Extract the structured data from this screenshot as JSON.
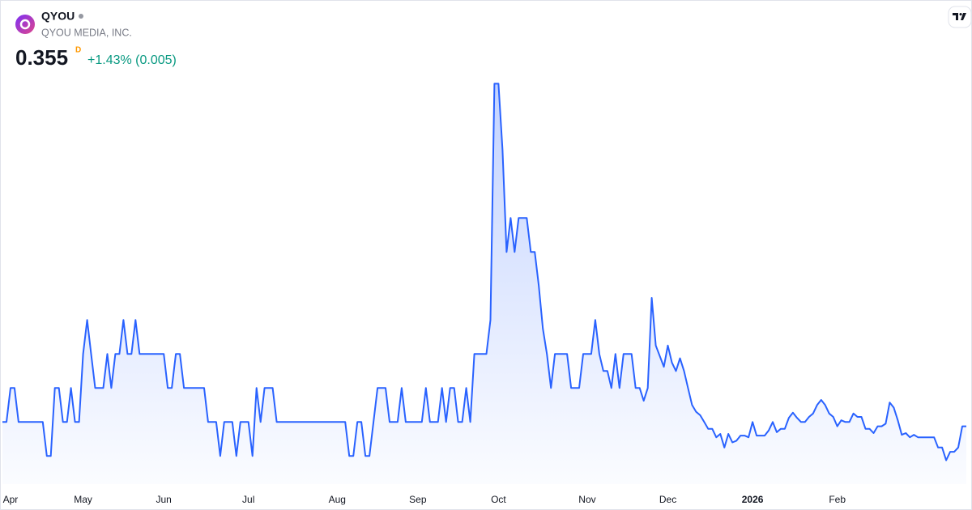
{
  "header": {
    "symbol": "QYOU",
    "company": "QYOU MEDIA, INC.",
    "price": "0.355",
    "interval": "D",
    "change": "+1.43% (0.005)"
  },
  "chart_data": {
    "type": "area",
    "color": "#2962ff",
    "x": [
      0,
      1,
      2,
      3,
      4,
      10,
      11,
      12,
      13,
      14,
      15,
      16,
      17,
      18,
      19,
      20,
      21,
      22,
      23,
      25,
      26,
      27,
      28,
      29,
      30,
      31,
      32,
      33,
      34,
      40,
      41,
      42,
      43,
      44,
      45,
      50,
      51,
      53,
      54,
      55,
      57,
      58,
      59,
      61,
      62,
      63,
      64,
      65,
      67,
      68,
      85,
      86,
      87,
      88,
      89,
      90,
      91,
      92,
      93,
      95,
      96,
      98,
      99,
      100,
      104,
      105,
      106,
      108,
      109,
      110,
      111,
      112,
      113,
      114,
      115,
      116,
      117,
      120,
      121,
      122,
      123,
      124,
      125,
      126,
      127,
      128,
      130,
      131,
      132,
      133,
      134,
      135,
      136,
      137,
      140,
      141,
      143,
      144,
      146,
      147,
      148,
      149,
      150,
      151,
      152,
      153,
      154,
      156,
      157,
      158,
      159,
      160,
      161,
      162,
      164,
      165,
      166,
      167,
      168,
      169,
      170,
      171,
      172,
      173,
      174,
      175,
      176,
      177,
      178,
      179,
      180,
      181,
      182,
      183,
      184,
      185,
      186,
      187,
      189,
      190,
      191,
      192,
      193,
      194,
      195,
      196,
      197,
      198,
      199,
      200,
      201,
      202,
      203,
      204,
      205,
      206,
      207,
      208,
      209,
      210,
      211,
      212,
      213,
      214,
      215,
      216,
      217,
      218,
      219,
      220,
      221,
      222,
      223,
      224,
      225,
      226,
      227,
      231,
      232,
      233,
      234,
      235,
      236,
      237,
      238,
      239
    ],
    "values": [
      0.36,
      0.36,
      0.4,
      0.4,
      0.36,
      0.36,
      0.32,
      0.32,
      0.4,
      0.4,
      0.36,
      0.36,
      0.4,
      0.36,
      0.36,
      0.44,
      0.48,
      0.44,
      0.4,
      0.4,
      0.44,
      0.4,
      0.44,
      0.44,
      0.48,
      0.44,
      0.44,
      0.48,
      0.44,
      0.44,
      0.4,
      0.4,
      0.44,
      0.44,
      0.4,
      0.4,
      0.36,
      0.36,
      0.32,
      0.36,
      0.36,
      0.32,
      0.36,
      0.36,
      0.32,
      0.4,
      0.36,
      0.4,
      0.4,
      0.36,
      0.36,
      0.32,
      0.32,
      0.36,
      0.36,
      0.32,
      0.32,
      0.36,
      0.4,
      0.4,
      0.36,
      0.36,
      0.4,
      0.36,
      0.36,
      0.4,
      0.36,
      0.36,
      0.4,
      0.36,
      0.4,
      0.4,
      0.36,
      0.36,
      0.4,
      0.36,
      0.44,
      0.44,
      0.48,
      0.758,
      0.758,
      0.68,
      0.56,
      0.6,
      0.56,
      0.6,
      0.6,
      0.56,
      0.56,
      0.52,
      0.47,
      0.44,
      0.4,
      0.44,
      0.44,
      0.4,
      0.4,
      0.44,
      0.44,
      0.48,
      0.44,
      0.42,
      0.42,
      0.4,
      0.44,
      0.4,
      0.44,
      0.44,
      0.4,
      0.4,
      0.385,
      0.4,
      0.506,
      0.45,
      0.425,
      0.45,
      0.43,
      0.42,
      0.435,
      0.42,
      0.4,
      0.38,
      0.372,
      0.368,
      0.36,
      0.352,
      0.352,
      0.342,
      0.346,
      0.33,
      0.346,
      0.336,
      0.338,
      0.344,
      0.344,
      0.342,
      0.36,
      0.344,
      0.344,
      0.35,
      0.36,
      0.348,
      0.352,
      0.352,
      0.365,
      0.371,
      0.365,
      0.36,
      0.36,
      0.366,
      0.37,
      0.38,
      0.386,
      0.38,
      0.37,
      0.366,
      0.355,
      0.362,
      0.36,
      0.36,
      0.37,
      0.366,
      0.366,
      0.352,
      0.352,
      0.347,
      0.355,
      0.355,
      0.358,
      0.383,
      0.377,
      0.362,
      0.345,
      0.347,
      0.342,
      0.345,
      0.342,
      0.342,
      0.33,
      0.33,
      0.315,
      0.325,
      0.325,
      0.33,
      0.355,
      0.355
    ],
    "xlim": [
      0,
      239
    ],
    "ylim": [
      0.287,
      0.766
    ],
    "xticks": [
      {
        "value": 2,
        "label": "Apr"
      },
      {
        "value": 20,
        "label": "May"
      },
      {
        "value": 40,
        "label": "Jun"
      },
      {
        "value": 61,
        "label": "Jul"
      },
      {
        "value": 83,
        "label": "Aug"
      },
      {
        "value": 103,
        "label": "Sep"
      },
      {
        "value": 123,
        "label": "Oct"
      },
      {
        "value": 145,
        "label": "Nov"
      },
      {
        "value": 165,
        "label": "Dec"
      },
      {
        "value": 186,
        "label": "2026"
      },
      {
        "value": 207,
        "label": "Feb"
      }
    ]
  }
}
